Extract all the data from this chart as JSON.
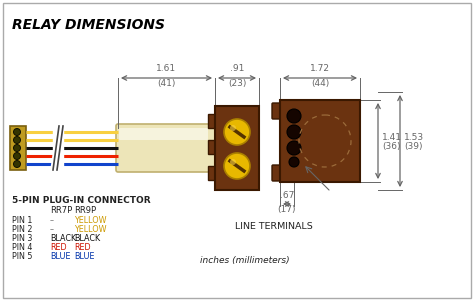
{
  "title": "RELAY DIMENSIONS",
  "bg_color": "#f0ede8",
  "border_color": "#999999",
  "white_bg": "#ffffff",
  "brown": "#6B3310",
  "brown_dark": "#3A1800",
  "tan_sheath": "#E8DDB0",
  "tan_sheath_edge": "#C8B880",
  "yellow_terminal": "#E8B800",
  "yellow_connector": "#C8A000",
  "dim_color": "#666666",
  "text_color": "#222222",
  "wire_colors_left": [
    "#F8D820",
    "#F8D820",
    "#F8D820",
    "#F8D820",
    "#111111",
    "#EE2200",
    "#1144CC"
  ],
  "wire_ys_offset": [
    -14,
    -7,
    0,
    7,
    14,
    0,
    0
  ],
  "connector_label": "5-PIN PLUG-IN CONNECTOR",
  "col_headers": [
    "RR7P",
    "RR9P"
  ],
  "pins": [
    [
      "PIN 1",
      "–",
      "YELLOW"
    ],
    [
      "PIN 2",
      "–",
      "YELLOW"
    ],
    [
      "PIN 3",
      "BLACK",
      "BLACK"
    ],
    [
      "PIN 4",
      "RED",
      "RED"
    ],
    [
      "PIN 5",
      "BLUE",
      "BLUE"
    ]
  ],
  "line_terminals_label": "LINE TERMINALS",
  "inches_label": "inches (millimeters)",
  "dim_161": "1.61",
  "dim_41": "(41)",
  "dim_91": ".91",
  "dim_23": "(23)",
  "dim_172": "1.72",
  "dim_44": "(44)",
  "dim_141": "1.41",
  "dim_36": "(36)",
  "dim_153": "1.53",
  "dim_39": "(39)",
  "dim_67": ".67",
  "dim_17": "(17)"
}
